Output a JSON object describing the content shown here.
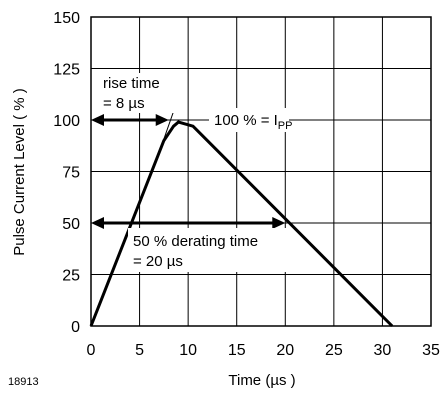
{
  "chart_data": {
    "type": "line",
    "title": "",
    "xlabel": "Time (µs )",
    "ylabel": "Pulse Current Level ( % )",
    "xlim": [
      0,
      35
    ],
    "ylim": [
      0,
      150
    ],
    "x_ticks": [
      "0",
      "5",
      "10",
      "15",
      "20",
      "25",
      "30",
      "35"
    ],
    "y_ticks": [
      "0",
      "25",
      "50",
      "75",
      "100",
      "125",
      "150"
    ],
    "grid": true,
    "series": [
      {
        "x": [
          0,
          1,
          7.5,
          8.5,
          9,
          10.5,
          31
        ],
        "y": [
          0,
          12,
          90,
          97,
          99,
          97,
          0
        ]
      }
    ],
    "rise_line": {
      "x": [
        7,
        9.6
      ],
      "y": [
        84,
        119
      ]
    },
    "thin_line": {
      "x": [
        11,
        20
      ],
      "y": [
        100,
        100
      ]
    },
    "arrows": [
      {
        "from": [
          0,
          100
        ],
        "to": [
          8,
          100
        ]
      },
      {
        "from": [
          0,
          50
        ],
        "to": [
          20,
          50
        ]
      }
    ],
    "annotations": {
      "rise_time_1": "rise time",
      "rise_time_2": "= 8 µs",
      "ipp_main": "100 % = I",
      "ipp_sub": "PP",
      "derating_1": "50 % derating time",
      "derating_2": "= 20 µs"
    },
    "figure_id": "18913"
  }
}
